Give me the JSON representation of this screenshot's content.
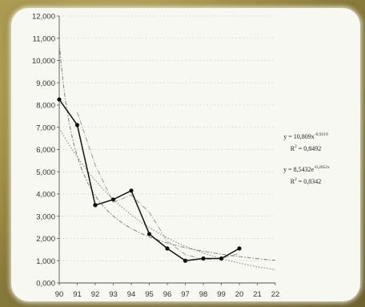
{
  "chart_data": {
    "type": "line",
    "title": "",
    "xlabel": "",
    "ylabel": "",
    "ylim": [
      0,
      12
    ],
    "y_tick_labels": [
      "0,000",
      "1,000",
      "2,000",
      "3,000",
      "4,000",
      "5,000",
      "6,000",
      "7,000",
      "8,000",
      "9,000",
      "10,000",
      "11,000",
      "12,000"
    ],
    "x_tick_labels": [
      "90",
      "91",
      "92",
      "93",
      "94",
      "95",
      "96",
      "97",
      "98",
      "99",
      "20",
      "21",
      "22"
    ],
    "series": [
      {
        "values": [
          8.25,
          7.1,
          3.5,
          3.75,
          4.15,
          2.2,
          1.55,
          1.0,
          1.1,
          1.1,
          1.55
        ]
      }
    ],
    "trendlines": [
      {
        "type": "power",
        "equation": "y = 10,809x",
        "exponent": "-0,9219",
        "r2_label": "R",
        "r2_sup": "2",
        "r2_value": " = 0,8492"
      },
      {
        "type": "exponential",
        "equation": "y = 8,5432e",
        "exponent": "-0,2052x",
        "r2_label": "R",
        "r2_sup": "2",
        "r2_value": " = 0,8342"
      }
    ]
  }
}
